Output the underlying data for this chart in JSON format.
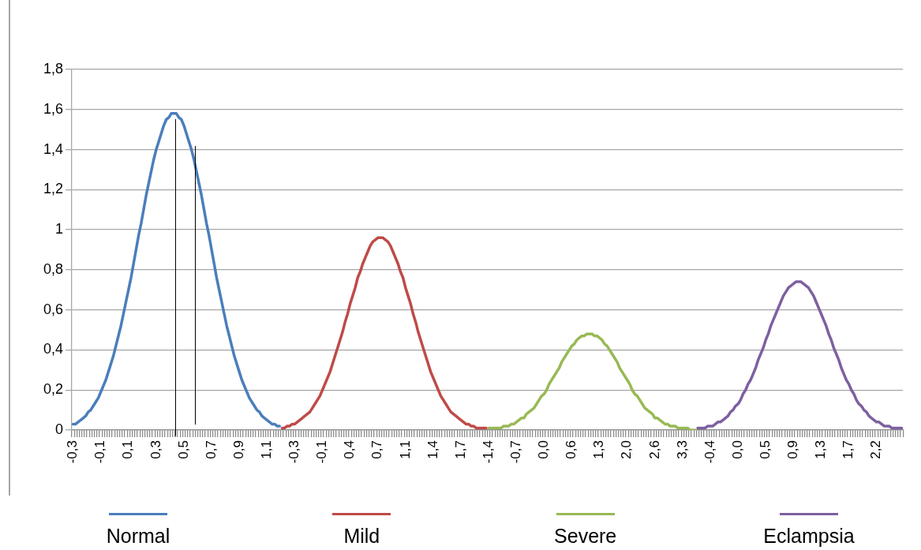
{
  "chart_data": {
    "type": "line",
    "categories": [
      "-0,3",
      null,
      null,
      null,
      null,
      null,
      null,
      null,
      null,
      null,
      null,
      "-0,1",
      null,
      null,
      null,
      null,
      null,
      null,
      null,
      null,
      null,
      null,
      "0,1",
      null,
      null,
      null,
      null,
      null,
      null,
      null,
      null,
      null,
      null,
      "0,3",
      null,
      null,
      null,
      null,
      null,
      null,
      null,
      null,
      null,
      null,
      "0,5",
      null,
      null,
      null,
      null,
      null,
      null,
      null,
      null,
      null,
      null,
      "0,7",
      null,
      null,
      null,
      null,
      null,
      null,
      null,
      null,
      null,
      null,
      "0,9",
      null,
      null,
      null,
      null,
      null,
      null,
      null,
      null,
      null,
      null,
      "1,1",
      null,
      null,
      null,
      null,
      null,
      null,
      null,
      null,
      null,
      null,
      "-0,3",
      null,
      null,
      null,
      null,
      null,
      null,
      null,
      null,
      null,
      null,
      "-0,1",
      null,
      null,
      null,
      null,
      null,
      null,
      null,
      null,
      null,
      null,
      "0,4",
      null,
      null,
      null,
      null,
      null,
      null,
      null,
      null,
      null,
      null,
      "0,7",
      null,
      null,
      null,
      null,
      null,
      null,
      null,
      null,
      null,
      null,
      "1,1",
      null,
      null,
      null,
      null,
      null,
      null,
      null,
      null,
      null,
      null,
      "1,4",
      null,
      null,
      null,
      null,
      null,
      null,
      null,
      null,
      null,
      null,
      "1,7",
      null,
      null,
      null,
      null,
      null,
      null,
      null,
      null,
      null,
      null,
      "-1,4",
      null,
      null,
      null,
      null,
      null,
      null,
      null,
      null,
      null,
      null,
      "-0,7",
      null,
      null,
      null,
      null,
      null,
      null,
      null,
      null,
      null,
      null,
      "0,0",
      null,
      null,
      null,
      null,
      null,
      null,
      null,
      null,
      null,
      null,
      "0,6",
      null,
      null,
      null,
      null,
      null,
      null,
      null,
      null,
      null,
      null,
      "1,3",
      null,
      null,
      null,
      null,
      null,
      null,
      null,
      null,
      null,
      null,
      "2,0",
      null,
      null,
      null,
      null,
      null,
      null,
      null,
      null,
      null,
      null,
      "2,6",
      null,
      null,
      null,
      null,
      null,
      null,
      null,
      null,
      null,
      null,
      "3,3",
      null,
      null,
      null,
      null,
      null,
      null,
      null,
      null,
      null,
      null,
      "-0,4",
      null,
      null,
      null,
      null,
      null,
      null,
      null,
      null,
      null,
      null,
      "0,0",
      null,
      null,
      null,
      null,
      null,
      null,
      null,
      null,
      null,
      null,
      "0,5",
      null,
      null,
      null,
      null,
      null,
      null,
      null,
      null,
      null,
      null,
      "0,9",
      null,
      null,
      null,
      null,
      null,
      null,
      null,
      null,
      null,
      null,
      "1,3",
      null,
      null,
      null,
      null,
      null,
      null,
      null,
      null,
      null,
      null,
      "1,7",
      null,
      null,
      null,
      null,
      null,
      null,
      null,
      null,
      null,
      null,
      "2,2",
      null,
      null,
      null,
      null,
      null,
      null,
      null,
      null,
      null,
      null
    ],
    "series": [
      {
        "name": "Normal",
        "color": "#4a7ebb",
        "values": [
          0.03,
          0.03,
          0.04,
          0.05,
          0.06,
          0.07,
          0.09,
          0.1,
          0.12,
          0.14,
          0.16,
          0.19,
          0.22,
          0.25,
          0.29,
          0.33,
          0.37,
          0.42,
          0.47,
          0.52,
          0.58,
          0.64,
          0.7,
          0.76,
          0.83,
          0.9,
          0.97,
          1.03,
          1.1,
          1.17,
          1.23,
          1.29,
          1.35,
          1.4,
          1.44,
          1.48,
          1.52,
          1.55,
          1.56,
          1.58,
          1.58,
          1.58,
          1.56,
          1.55,
          1.52,
          1.48,
          1.44,
          1.4,
          1.35,
          1.29,
          1.23,
          1.17,
          1.1,
          1.03,
          0.97,
          0.9,
          0.83,
          0.76,
          0.7,
          0.64,
          0.58,
          0.52,
          0.47,
          0.42,
          0.37,
          0.33,
          0.29,
          0.25,
          0.22,
          0.19,
          0.16,
          0.14,
          0.12,
          0.1,
          0.09,
          0.07,
          0.06,
          0.05,
          0.04,
          0.03,
          0.03,
          0.02,
          0.02,
          null,
          null,
          null,
          null,
          null,
          null,
          null,
          null,
          null,
          null,
          null,
          null,
          null,
          null,
          null,
          null,
          null,
          null,
          null,
          null,
          null,
          null,
          null,
          null,
          null,
          null,
          null,
          null,
          null,
          null,
          null,
          null,
          null,
          null,
          null,
          null,
          null,
          null,
          null,
          null,
          null,
          null,
          null,
          null,
          null,
          null,
          null,
          null,
          null,
          null,
          null,
          null,
          null,
          null,
          null,
          null,
          null,
          null,
          null,
          null,
          null,
          null,
          null,
          null,
          null,
          null,
          null,
          null,
          null,
          null,
          null,
          null,
          null,
          null,
          null,
          null,
          null,
          null,
          null,
          null,
          null,
          null,
          null,
          null,
          null,
          null,
          null,
          null,
          null,
          null,
          null,
          null,
          null,
          null,
          null,
          null,
          null,
          null,
          null,
          null,
          null,
          null,
          null,
          null,
          null,
          null,
          null,
          null,
          null,
          null,
          null,
          null,
          null,
          null,
          null,
          null,
          null,
          null,
          null,
          null,
          null,
          null,
          null,
          null,
          null,
          null,
          null,
          null,
          null,
          null,
          null,
          null,
          null,
          null,
          null,
          null,
          null,
          null,
          null,
          null,
          null,
          null,
          null,
          null,
          null,
          null,
          null,
          null,
          null,
          null,
          null,
          null,
          null,
          null,
          null,
          null,
          null,
          null,
          null,
          null,
          null,
          null,
          null,
          null,
          null,
          null,
          null,
          null,
          null,
          null,
          null,
          null,
          null,
          null,
          null,
          null,
          null,
          null,
          null,
          null,
          null,
          null,
          null,
          null,
          null,
          null,
          null,
          null,
          null,
          null,
          null,
          null,
          null,
          null,
          null,
          null,
          null,
          null,
          null,
          null,
          null,
          null,
          null,
          null,
          null,
          null,
          null,
          null,
          null,
          null,
          null,
          null,
          null,
          null,
          null,
          null,
          null,
          null,
          null,
          null,
          null,
          null,
          null,
          null,
          null,
          null,
          null,
          null,
          null,
          null,
          null,
          null,
          null,
          null,
          null,
          null,
          null,
          null,
          null,
          null,
          null,
          null,
          null,
          null,
          null,
          null,
          null
        ]
      },
      {
        "name": "Mild",
        "color": "#be4b48",
        "values": [
          null,
          null,
          null,
          null,
          null,
          null,
          null,
          null,
          null,
          null,
          null,
          null,
          null,
          null,
          null,
          null,
          null,
          null,
          null,
          null,
          null,
          null,
          null,
          null,
          null,
          null,
          null,
          null,
          null,
          null,
          null,
          null,
          null,
          null,
          null,
          null,
          null,
          null,
          null,
          null,
          null,
          null,
          null,
          null,
          null,
          null,
          null,
          null,
          null,
          null,
          null,
          null,
          null,
          null,
          null,
          null,
          null,
          null,
          null,
          null,
          null,
          null,
          null,
          null,
          null,
          null,
          null,
          null,
          null,
          null,
          null,
          null,
          null,
          null,
          null,
          null,
          null,
          null,
          null,
          null,
          null,
          null,
          null,
          0.01,
          0.01,
          0.02,
          0.02,
          0.03,
          0.03,
          0.04,
          0.05,
          0.06,
          0.07,
          0.08,
          0.09,
          0.11,
          0.13,
          0.15,
          0.17,
          0.2,
          0.23,
          0.26,
          0.29,
          0.33,
          0.37,
          0.41,
          0.45,
          0.49,
          0.54,
          0.58,
          0.63,
          0.67,
          0.71,
          0.76,
          0.79,
          0.83,
          0.86,
          0.89,
          0.92,
          0.94,
          0.95,
          0.96,
          0.96,
          0.96,
          0.95,
          0.94,
          0.92,
          0.89,
          0.86,
          0.83,
          0.79,
          0.76,
          0.71,
          0.67,
          0.63,
          0.58,
          0.54,
          0.49,
          0.45,
          0.41,
          0.37,
          0.33,
          0.29,
          0.26,
          0.23,
          0.2,
          0.17,
          0.15,
          0.13,
          0.11,
          0.09,
          0.08,
          0.07,
          0.06,
          0.05,
          0.04,
          0.03,
          0.03,
          0.02,
          0.02,
          0.01,
          0.01,
          0.01,
          0.01,
          0.01,
          null,
          null,
          null,
          null,
          null,
          null,
          null,
          null,
          null,
          null,
          null,
          null,
          null,
          null,
          null,
          null,
          null,
          null,
          null,
          null,
          null,
          null,
          null,
          null,
          null,
          null,
          null,
          null,
          null,
          null,
          null,
          null,
          null,
          null,
          null,
          null,
          null,
          null,
          null,
          null,
          null,
          null,
          null,
          null,
          null,
          null,
          null,
          null,
          null,
          null,
          null,
          null,
          null,
          null,
          null,
          null,
          null,
          null,
          null,
          null,
          null,
          null,
          null,
          null,
          null,
          null,
          null,
          null,
          null,
          null,
          null,
          null,
          null,
          null,
          null,
          null,
          null,
          null,
          null,
          null,
          null,
          null,
          null,
          null,
          null,
          null,
          null,
          null,
          null,
          null,
          null,
          null,
          null,
          null,
          null,
          null,
          null,
          null,
          null,
          null,
          null,
          null,
          null,
          null,
          null,
          null,
          null,
          null,
          null,
          null,
          null,
          null,
          null,
          null,
          null,
          null,
          null,
          null,
          null,
          null,
          null,
          null,
          null,
          null,
          null,
          null,
          null,
          null,
          null,
          null,
          null,
          null,
          null,
          null,
          null,
          null,
          null,
          null,
          null,
          null,
          null,
          null,
          null,
          null,
          null,
          null,
          null,
          null,
          null,
          null,
          null,
          null,
          null,
          null,
          null,
          null,
          null,
          null,
          null,
          null,
          null,
          null,
          null,
          null,
          null
        ]
      },
      {
        "name": "Severe",
        "color": "#98b954",
        "values": [
          null,
          null,
          null,
          null,
          null,
          null,
          null,
          null,
          null,
          null,
          null,
          null,
          null,
          null,
          null,
          null,
          null,
          null,
          null,
          null,
          null,
          null,
          null,
          null,
          null,
          null,
          null,
          null,
          null,
          null,
          null,
          null,
          null,
          null,
          null,
          null,
          null,
          null,
          null,
          null,
          null,
          null,
          null,
          null,
          null,
          null,
          null,
          null,
          null,
          null,
          null,
          null,
          null,
          null,
          null,
          null,
          null,
          null,
          null,
          null,
          null,
          null,
          null,
          null,
          null,
          null,
          null,
          null,
          null,
          null,
          null,
          null,
          null,
          null,
          null,
          null,
          null,
          null,
          null,
          null,
          null,
          null,
          null,
          null,
          null,
          null,
          null,
          null,
          null,
          null,
          null,
          null,
          null,
          null,
          null,
          null,
          null,
          null,
          null,
          null,
          null,
          null,
          null,
          null,
          null,
          null,
          null,
          null,
          null,
          null,
          null,
          null,
          null,
          null,
          null,
          null,
          null,
          null,
          null,
          null,
          null,
          null,
          null,
          null,
          null,
          null,
          null,
          null,
          null,
          null,
          null,
          null,
          null,
          null,
          null,
          null,
          null,
          null,
          null,
          null,
          null,
          null,
          null,
          null,
          null,
          null,
          null,
          null,
          null,
          null,
          null,
          null,
          null,
          null,
          null,
          null,
          null,
          null,
          null,
          null,
          null,
          null,
          null,
          null,
          null,
          0.01,
          0.01,
          0.01,
          0.01,
          0.01,
          0.01,
          0.02,
          0.02,
          0.02,
          0.03,
          0.03,
          0.04,
          0.05,
          0.06,
          0.06,
          0.08,
          0.09,
          0.1,
          0.11,
          0.13,
          0.15,
          0.17,
          0.18,
          0.2,
          0.23,
          0.25,
          0.27,
          0.29,
          0.31,
          0.34,
          0.36,
          0.38,
          0.4,
          0.42,
          0.43,
          0.45,
          0.46,
          0.47,
          0.47,
          0.48,
          0.48,
          0.48,
          0.47,
          0.47,
          0.46,
          0.45,
          0.43,
          0.42,
          0.4,
          0.38,
          0.36,
          0.34,
          0.31,
          0.29,
          0.27,
          0.25,
          0.23,
          0.2,
          0.18,
          0.17,
          0.15,
          0.13,
          0.11,
          0.1,
          0.09,
          0.08,
          0.06,
          0.06,
          0.05,
          0.04,
          0.03,
          0.03,
          0.02,
          0.02,
          0.02,
          0.01,
          0.01,
          0.01,
          0.01,
          0.01,
          0,
          0,
          0,
          null,
          null,
          null,
          null,
          null,
          null,
          null,
          null,
          null,
          null,
          null,
          null,
          null,
          null,
          null,
          null,
          null,
          null,
          null,
          null,
          null,
          null,
          null,
          null,
          null,
          null,
          null,
          null,
          null,
          null,
          null,
          null,
          null,
          null,
          null,
          null,
          null,
          null,
          null,
          null,
          null,
          null,
          null,
          null,
          null,
          null,
          null,
          null,
          null,
          null,
          null,
          null,
          null,
          null,
          null,
          null,
          null,
          null,
          null,
          null,
          null,
          null,
          null,
          null,
          null,
          null,
          null,
          null,
          null,
          null,
          null,
          null,
          null,
          null,
          null,
          null,
          null,
          null,
          null,
          null,
          null,
          null
        ]
      },
      {
        "name": "Eclampsia",
        "color": "#7d60a0",
        "values": [
          null,
          null,
          null,
          null,
          null,
          null,
          null,
          null,
          null,
          null,
          null,
          null,
          null,
          null,
          null,
          null,
          null,
          null,
          null,
          null,
          null,
          null,
          null,
          null,
          null,
          null,
          null,
          null,
          null,
          null,
          null,
          null,
          null,
          null,
          null,
          null,
          null,
          null,
          null,
          null,
          null,
          null,
          null,
          null,
          null,
          null,
          null,
          null,
          null,
          null,
          null,
          null,
          null,
          null,
          null,
          null,
          null,
          null,
          null,
          null,
          null,
          null,
          null,
          null,
          null,
          null,
          null,
          null,
          null,
          null,
          null,
          null,
          null,
          null,
          null,
          null,
          null,
          null,
          null,
          null,
          null,
          null,
          null,
          null,
          null,
          null,
          null,
          null,
          null,
          null,
          null,
          null,
          null,
          null,
          null,
          null,
          null,
          null,
          null,
          null,
          null,
          null,
          null,
          null,
          null,
          null,
          null,
          null,
          null,
          null,
          null,
          null,
          null,
          null,
          null,
          null,
          null,
          null,
          null,
          null,
          null,
          null,
          null,
          null,
          null,
          null,
          null,
          null,
          null,
          null,
          null,
          null,
          null,
          null,
          null,
          null,
          null,
          null,
          null,
          null,
          null,
          null,
          null,
          null,
          null,
          null,
          null,
          null,
          null,
          null,
          null,
          null,
          null,
          null,
          null,
          null,
          null,
          null,
          null,
          null,
          null,
          null,
          null,
          null,
          null,
          null,
          null,
          null,
          null,
          null,
          null,
          null,
          null,
          null,
          null,
          null,
          null,
          null,
          null,
          null,
          null,
          null,
          null,
          null,
          null,
          null,
          null,
          null,
          null,
          null,
          null,
          null,
          null,
          null,
          null,
          null,
          null,
          null,
          null,
          null,
          null,
          null,
          null,
          null,
          null,
          null,
          null,
          null,
          null,
          null,
          null,
          null,
          null,
          null,
          null,
          null,
          null,
          null,
          null,
          null,
          null,
          null,
          null,
          null,
          null,
          null,
          null,
          null,
          null,
          null,
          null,
          null,
          null,
          null,
          null,
          null,
          null,
          null,
          null,
          null,
          null,
          null,
          null,
          null,
          null,
          null,
          null,
          null,
          0.01,
          0.01,
          0.01,
          0.01,
          0.02,
          0.02,
          0.02,
          0.03,
          0.04,
          0.04,
          0.05,
          0.06,
          0.07,
          0.09,
          0.1,
          0.12,
          0.13,
          0.15,
          0.18,
          0.2,
          0.23,
          0.25,
          0.28,
          0.31,
          0.35,
          0.38,
          0.41,
          0.45,
          0.48,
          0.52,
          0.55,
          0.58,
          0.61,
          0.64,
          0.67,
          0.69,
          0.71,
          0.72,
          0.73,
          0.74,
          0.74,
          0.74,
          0.73,
          0.72,
          0.71,
          0.69,
          0.67,
          0.64,
          0.61,
          0.58,
          0.55,
          0.52,
          0.48,
          0.45,
          0.41,
          0.38,
          0.35,
          0.31,
          0.28,
          0.25,
          0.23,
          0.2,
          0.18,
          0.15,
          0.13,
          0.12,
          0.1,
          0.09,
          0.07,
          0.06,
          0.05,
          0.04,
          0.04,
          0.03,
          0.02,
          0.02,
          0.02,
          0.01,
          0.01,
          0.01,
          0.01,
          0.01
        ]
      }
    ],
    "ylim": [
      0,
      1.8
    ],
    "yticks": [
      0,
      {
        "value": 0.2,
        "label": "0,2"
      },
      {
        "value": 0.4,
        "label": "0,4"
      },
      {
        "value": 0.6,
        "label": "0,6"
      },
      {
        "value": 0.8,
        "label": "0,8"
      },
      1,
      {
        "value": 1.2,
        "label": "1,2"
      },
      {
        "value": 1.4,
        "label": "1,4"
      },
      {
        "value": 1.6,
        "label": "1,6"
      },
      {
        "value": 1.8,
        "label": "1,8"
      }
    ],
    "grid": "y",
    "legend": "bottom",
    "marker": "none"
  }
}
